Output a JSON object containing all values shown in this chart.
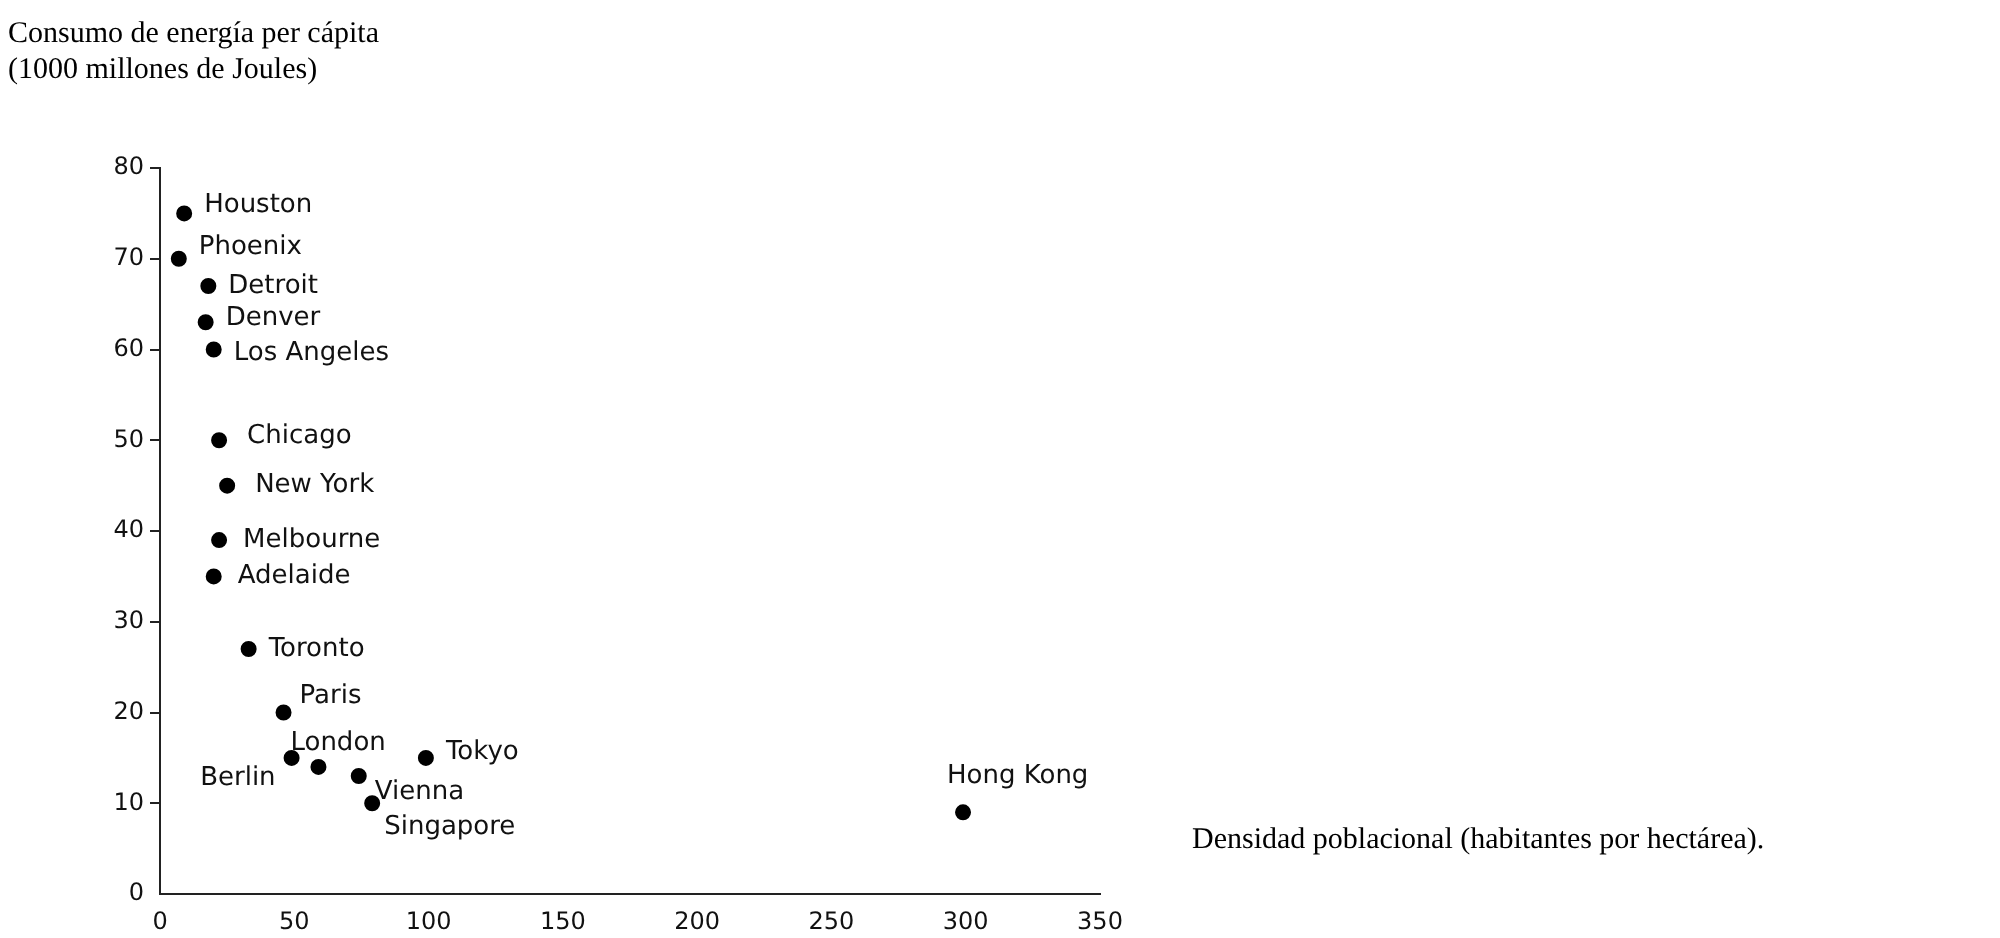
{
  "chart_data": {
    "type": "scatter",
    "ylabel": "Consumo de energía per cápita\n(1000 millones de Joules)",
    "xlabel": "Densidad poblacional (habitantes por hectárea).",
    "x": [
      9,
      7,
      18,
      17,
      20,
      22,
      25,
      22,
      20,
      33,
      46,
      49,
      59,
      74,
      79,
      99,
      299
    ],
    "values": [
      75,
      70,
      67,
      63,
      60,
      50,
      45,
      39,
      35,
      27,
      20,
      15,
      14,
      13,
      10,
      15,
      9
    ],
    "color": "#000000",
    "marker": "circle",
    "grid": false,
    "xlim": [
      0,
      350
    ],
    "xticks": [
      0,
      50,
      100,
      150,
      200,
      250,
      300,
      350
    ],
    "ylim": [
      0,
      80
    ],
    "yticks": [
      0,
      10,
      20,
      30,
      40,
      50,
      60,
      70,
      80
    ],
    "annotations": [
      {
        "text": "Houston",
        "x": 9,
        "y": 75
      },
      {
        "text": "Phoenix",
        "x": 7,
        "y": 70
      },
      {
        "text": "Detroit",
        "x": 18,
        "y": 67
      },
      {
        "text": "Denver",
        "x": 17,
        "y": 63
      },
      {
        "text": "Los Angeles",
        "x": 20,
        "y": 60
      },
      {
        "text": "Chicago",
        "x": 22,
        "y": 50
      },
      {
        "text": "New York",
        "x": 25,
        "y": 45
      },
      {
        "text": "Melbourne",
        "x": 22,
        "y": 39
      },
      {
        "text": "Adelaide",
        "x": 20,
        "y": 35
      },
      {
        "text": "Toronto",
        "x": 33,
        "y": 27
      },
      {
        "text": "Paris",
        "x": 46,
        "y": 20
      },
      {
        "text": "Berlin",
        "x": 49,
        "y": 15
      },
      {
        "text": "London",
        "x": 59,
        "y": 14
      },
      {
        "text": "Vienna",
        "x": 74,
        "y": 13
      },
      {
        "text": "Singapore",
        "x": 79,
        "y": 10
      },
      {
        "text": "Tokyo",
        "x": 99,
        "y": 15
      },
      {
        "text": "Hong Kong",
        "x": 299,
        "y": 9
      }
    ]
  }
}
